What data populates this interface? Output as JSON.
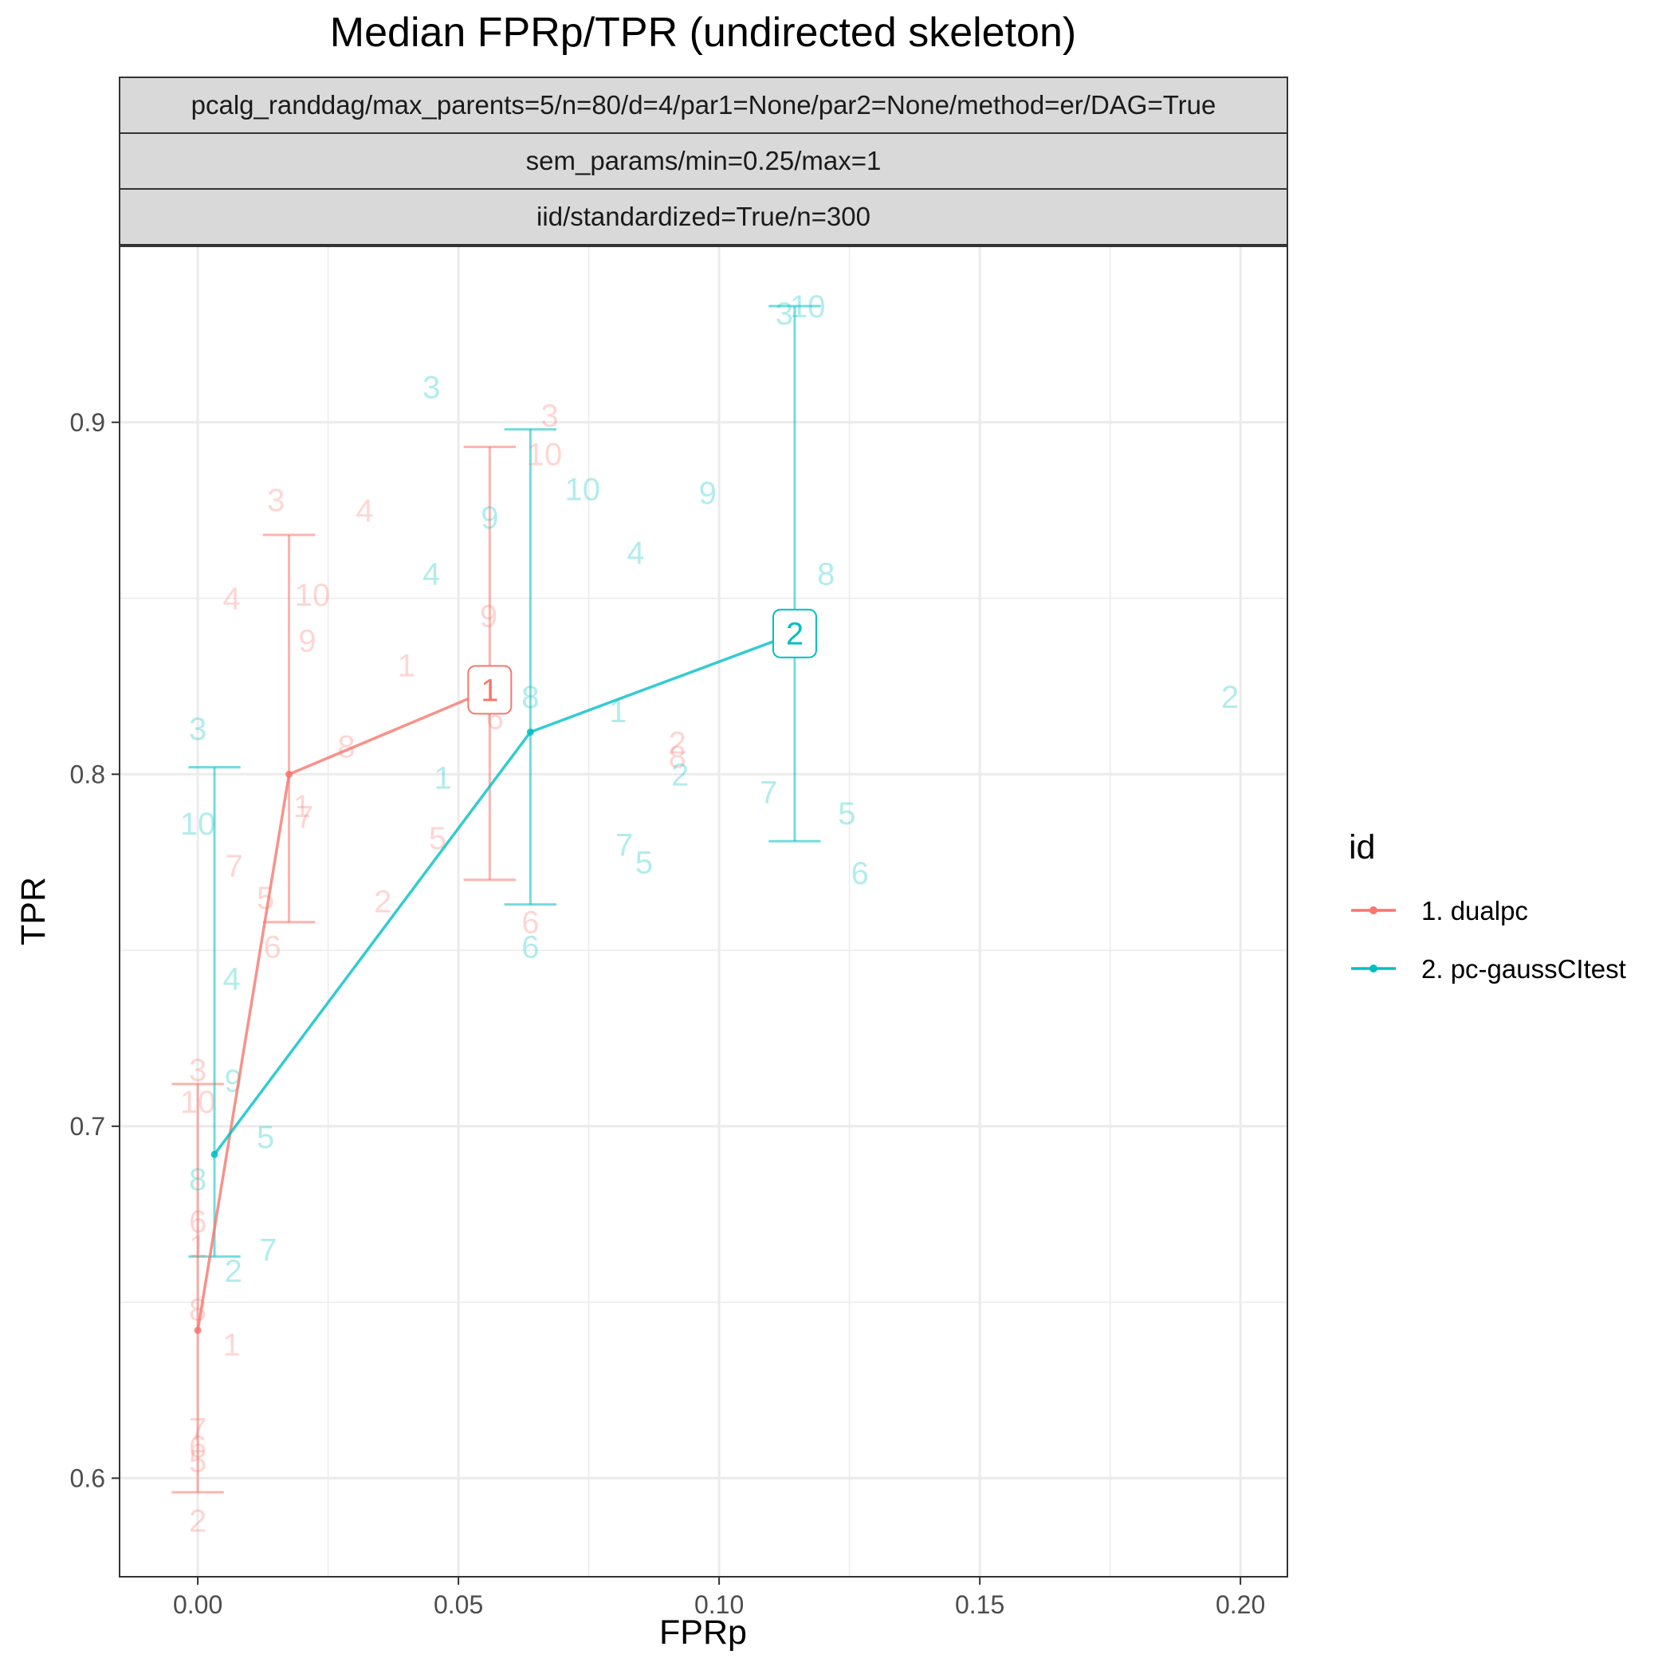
{
  "chart_data": {
    "type": "line",
    "title": "Median FPRp/TPR (undirected skeleton)",
    "facet_strips": [
      "pcalg_randdag/max_parents=5/n=80/d=4/par1=None/par2=None/method=er/DAG=True",
      "sem_params/min=0.25/max=1",
      "iid/standardized=True/n=300"
    ],
    "xlabel": "FPRp",
    "ylabel": "TPR",
    "xlim": [
      -0.015,
      0.209
    ],
    "ylim": [
      0.572,
      0.95
    ],
    "x_breaks": [
      0.0,
      0.05,
      0.1,
      0.15,
      0.2
    ],
    "x_tick_labels": [
      "0.00",
      "0.05",
      "0.10",
      "0.15",
      "0.20"
    ],
    "y_breaks": [
      0.6,
      0.7,
      0.8,
      0.9
    ],
    "y_tick_labels": [
      "0.6",
      "0.7",
      "0.8",
      "0.9"
    ],
    "grid": true,
    "legend": {
      "title": "id",
      "position": "right"
    },
    "series": [
      {
        "name": "1. dualpc",
        "color": "#F8766D",
        "median_path": [
          {
            "x": 0.0,
            "y": 0.642
          },
          {
            "x": 0.0175,
            "y": 0.8
          },
          {
            "x": 0.056,
            "y": 0.824
          }
        ],
        "error_bars": [
          {
            "x": 0.0,
            "ymin": 0.596,
            "ymax": 0.712,
            "half_width": 0.005
          },
          {
            "x": 0.0175,
            "ymin": 0.758,
            "ymax": 0.868,
            "half_width": 0.005
          },
          {
            "x": 0.056,
            "ymin": 0.77,
            "ymax": 0.893,
            "half_width": 0.005
          }
        ],
        "median_label": {
          "text": "1",
          "x": 0.056,
          "y": 0.824
        },
        "points": [
          {
            "label": "3",
            "x": 0.015,
            "y": 0.878
          },
          {
            "label": "4",
            "x": 0.032,
            "y": 0.875
          },
          {
            "label": "4",
            "x": 0.0065,
            "y": 0.85
          },
          {
            "label": "10",
            "x": 0.022,
            "y": 0.851
          },
          {
            "label": "9",
            "x": 0.021,
            "y": 0.838
          },
          {
            "label": "1",
            "x": 0.04,
            "y": 0.831
          },
          {
            "label": "8",
            "x": 0.0285,
            "y": 0.808
          },
          {
            "label": "1",
            "x": 0.02,
            "y": 0.791
          },
          {
            "label": "7",
            "x": 0.0205,
            "y": 0.788
          },
          {
            "label": "7",
            "x": 0.007,
            "y": 0.774
          },
          {
            "label": "5",
            "x": 0.013,
            "y": 0.765
          },
          {
            "label": "6",
            "x": 0.0143,
            "y": 0.751
          },
          {
            "label": "2",
            "x": 0.0355,
            "y": 0.764
          },
          {
            "label": "5",
            "x": 0.046,
            "y": 0.782
          },
          {
            "label": "3",
            "x": 0.0675,
            "y": 0.902
          },
          {
            "label": "10",
            "x": 0.0665,
            "y": 0.891
          },
          {
            "label": "9",
            "x": 0.0558,
            "y": 0.845
          },
          {
            "label": "6",
            "x": 0.057,
            "y": 0.816
          },
          {
            "label": "6",
            "x": 0.0638,
            "y": 0.758
          },
          {
            "label": "2",
            "x": 0.092,
            "y": 0.809
          },
          {
            "label": "8",
            "x": 0.092,
            "y": 0.805
          },
          {
            "label": "3",
            "x": 0.0,
            "y": 0.716
          },
          {
            "label": "10",
            "x": 0.0,
            "y": 0.707
          },
          {
            "label": "6",
            "x": 0.0,
            "y": 0.673
          },
          {
            "label": "1",
            "x": 0.0,
            "y": 0.666
          },
          {
            "label": "8",
            "x": 0.0,
            "y": 0.648
          },
          {
            "label": "1",
            "x": 0.0065,
            "y": 0.638
          },
          {
            "label": "7",
            "x": 0.0,
            "y": 0.614
          },
          {
            "label": "6",
            "x": 0.0,
            "y": 0.609
          },
          {
            "label": "5",
            "x": 0.0,
            "y": 0.605
          },
          {
            "label": "2",
            "x": 0.0,
            "y": 0.588
          }
        ]
      },
      {
        "name": "2. pc-gaussCItest",
        "color": "#00BFC4",
        "median_path": [
          {
            "x": 0.0032,
            "y": 0.692
          },
          {
            "x": 0.0638,
            "y": 0.812
          },
          {
            "x": 0.1145,
            "y": 0.84
          }
        ],
        "error_bars": [
          {
            "x": 0.0032,
            "ymin": 0.663,
            "ymax": 0.802,
            "half_width": 0.005
          },
          {
            "x": 0.0638,
            "ymin": 0.763,
            "ymax": 0.898,
            "half_width": 0.005
          },
          {
            "x": 0.1145,
            "ymin": 0.781,
            "ymax": 0.933,
            "half_width": 0.005
          }
        ],
        "median_label": {
          "text": "2",
          "x": 0.1145,
          "y": 0.84
        },
        "points": [
          {
            "label": "3",
            "x": 0.1125,
            "y": 0.931
          },
          {
            "label": "10",
            "x": 0.117,
            "y": 0.933
          },
          {
            "label": "3",
            "x": 0.0448,
            "y": 0.91
          },
          {
            "label": "10",
            "x": 0.0738,
            "y": 0.881
          },
          {
            "label": "9",
            "x": 0.0978,
            "y": 0.88
          },
          {
            "label": "9",
            "x": 0.056,
            "y": 0.873
          },
          {
            "label": "4",
            "x": 0.084,
            "y": 0.863
          },
          {
            "label": "4",
            "x": 0.0448,
            "y": 0.857
          },
          {
            "label": "8",
            "x": 0.1205,
            "y": 0.857
          },
          {
            "label": "8",
            "x": 0.0638,
            "y": 0.822
          },
          {
            "label": "1",
            "x": 0.0806,
            "y": 0.818
          },
          {
            "label": "2",
            "x": 0.198,
            "y": 0.822
          },
          {
            "label": "3",
            "x": 0.0,
            "y": 0.813
          },
          {
            "label": "1",
            "x": 0.047,
            "y": 0.799
          },
          {
            "label": "2",
            "x": 0.0925,
            "y": 0.8
          },
          {
            "label": "7",
            "x": 0.1095,
            "y": 0.795
          },
          {
            "label": "5",
            "x": 0.1245,
            "y": 0.789
          },
          {
            "label": "10",
            "x": 0.0,
            "y": 0.786
          },
          {
            "label": "7",
            "x": 0.0818,
            "y": 0.78
          },
          {
            "label": "5",
            "x": 0.0856,
            "y": 0.775
          },
          {
            "label": "6",
            "x": 0.127,
            "y": 0.772
          },
          {
            "label": "6",
            "x": 0.0638,
            "y": 0.751
          },
          {
            "label": "4",
            "x": 0.0065,
            "y": 0.742
          },
          {
            "label": "9",
            "x": 0.0068,
            "y": 0.713
          },
          {
            "label": "5",
            "x": 0.013,
            "y": 0.697
          },
          {
            "label": "8",
            "x": 0.0,
            "y": 0.685
          },
          {
            "label": "7",
            "x": 0.0135,
            "y": 0.665
          },
          {
            "label": "2",
            "x": 0.0068,
            "y": 0.659
          }
        ]
      }
    ]
  }
}
